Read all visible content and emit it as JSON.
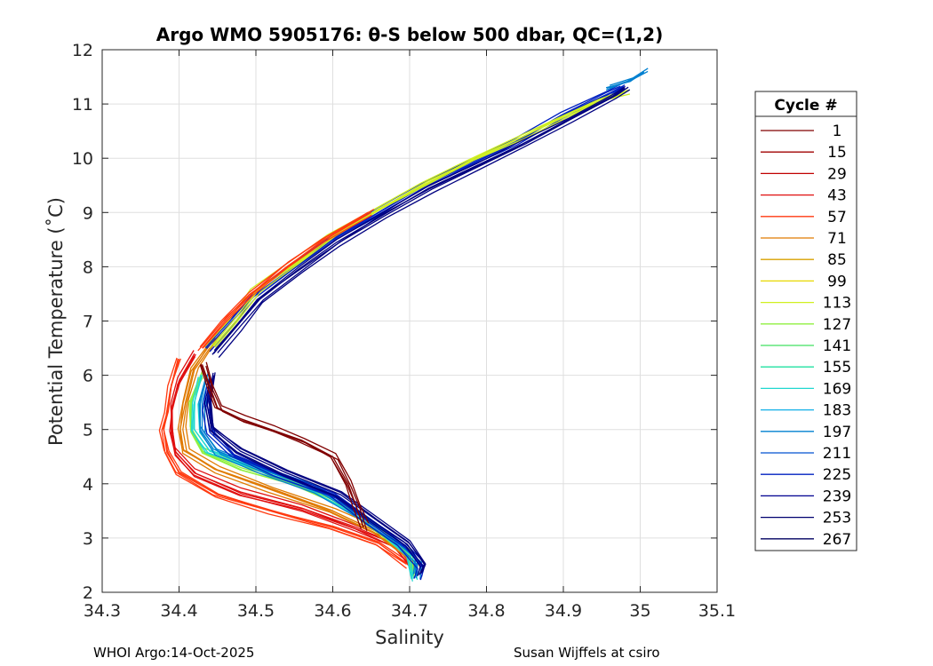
{
  "chart_data": {
    "type": "line",
    "title": "Argo WMO 5905176: θ-S below 500 dbar,  QC=(1,2)",
    "xlabel": "Salinity",
    "ylabel": "Potential Temperature (˚C)",
    "xlim": [
      34.3,
      35.1
    ],
    "ylim": [
      2,
      12
    ],
    "xticks": [
      "34.3",
      "34.4",
      "34.5",
      "34.6",
      "34.7",
      "34.8",
      "34.9",
      "35",
      "35.1"
    ],
    "yticks": [
      "2",
      "3",
      "4",
      "5",
      "6",
      "7",
      "8",
      "9",
      "10",
      "11",
      "12"
    ],
    "grid": true,
    "legend": {
      "title": "Cycle #",
      "placement": "outside-right",
      "entries": [
        {
          "label": "1",
          "color": "#800000"
        },
        {
          "label": "15",
          "color": "#a00000"
        },
        {
          "label": "29",
          "color": "#c00000"
        },
        {
          "label": "43",
          "color": "#e01010"
        },
        {
          "label": "57",
          "color": "#ff3a10"
        },
        {
          "label": "71",
          "color": "#e07a00"
        },
        {
          "label": "85",
          "color": "#d8a000"
        },
        {
          "label": "99",
          "color": "#e8d800"
        },
        {
          "label": "113",
          "color": "#d0f020"
        },
        {
          "label": "127",
          "color": "#90f040"
        },
        {
          "label": "141",
          "color": "#40e060"
        },
        {
          "label": "155",
          "color": "#20e0a0"
        },
        {
          "label": "169",
          "color": "#20d8d0"
        },
        {
          "label": "183",
          "color": "#10b0e8"
        },
        {
          "label": "197",
          "color": "#0080d0"
        },
        {
          "label": "211",
          "color": "#0050d0"
        },
        {
          "label": "225",
          "color": "#0020c0"
        },
        {
          "label": "239",
          "color": "#000090"
        },
        {
          "label": "253",
          "color": "#000070"
        },
        {
          "label": "267",
          "color": "#000060"
        }
      ]
    },
    "series": [
      {
        "color": "#ff3a10",
        "points": [
          [
            34.4,
            6.3
          ],
          [
            34.39,
            5.8
          ],
          [
            34.385,
            5.3
          ],
          [
            34.38,
            5.0
          ],
          [
            34.385,
            4.6
          ],
          [
            34.4,
            4.2
          ],
          [
            34.45,
            3.8
          ],
          [
            34.52,
            3.5
          ],
          [
            34.6,
            3.2
          ],
          [
            34.66,
            2.9
          ],
          [
            34.7,
            2.5
          ]
        ]
      },
      {
        "color": "#e01010",
        "points": [
          [
            34.42,
            6.4
          ],
          [
            34.4,
            5.9
          ],
          [
            34.39,
            5.4
          ],
          [
            34.39,
            5.0
          ],
          [
            34.395,
            4.6
          ],
          [
            34.42,
            4.2
          ],
          [
            34.48,
            3.85
          ],
          [
            34.56,
            3.55
          ],
          [
            34.63,
            3.2
          ],
          [
            34.68,
            2.9
          ],
          [
            34.705,
            2.45
          ]
        ]
      },
      {
        "color": "#e07a00",
        "points": [
          [
            34.45,
            6.7
          ],
          [
            34.42,
            6.1
          ],
          [
            34.41,
            5.5
          ],
          [
            34.405,
            5.0
          ],
          [
            34.41,
            4.6
          ],
          [
            34.45,
            4.25
          ],
          [
            34.52,
            3.9
          ],
          [
            34.6,
            3.5
          ],
          [
            34.66,
            3.1
          ],
          [
            34.7,
            2.7
          ],
          [
            34.71,
            2.4
          ]
        ]
      },
      {
        "color": "#90f040",
        "points": [
          [
            34.43,
            6.0
          ],
          [
            34.415,
            5.5
          ],
          [
            34.415,
            5.0
          ],
          [
            34.43,
            4.6
          ],
          [
            34.48,
            4.3
          ],
          [
            34.55,
            4.0
          ],
          [
            34.61,
            3.6
          ],
          [
            34.66,
            3.1
          ],
          [
            34.7,
            2.7
          ],
          [
            34.705,
            2.3
          ]
        ]
      },
      {
        "color": "#20d8d0",
        "points": [
          [
            34.43,
            6.0
          ],
          [
            34.42,
            5.5
          ],
          [
            34.42,
            5.0
          ],
          [
            34.44,
            4.6
          ],
          [
            34.5,
            4.3
          ],
          [
            34.57,
            3.95
          ],
          [
            34.63,
            3.5
          ],
          [
            34.67,
            3.1
          ],
          [
            34.7,
            2.7
          ],
          [
            34.705,
            2.25
          ]
        ]
      },
      {
        "color": "#0080d0",
        "points": [
          [
            34.44,
            6.0
          ],
          [
            34.43,
            5.5
          ],
          [
            34.43,
            5.0
          ],
          [
            34.45,
            4.6
          ],
          [
            34.51,
            4.25
          ],
          [
            34.58,
            3.9
          ],
          [
            34.64,
            3.4
          ],
          [
            34.68,
            3.0
          ],
          [
            34.71,
            2.6
          ],
          [
            34.71,
            2.3
          ]
        ]
      },
      {
        "color": "#0020c0",
        "points": [
          [
            34.44,
            5.9
          ],
          [
            34.435,
            5.4
          ],
          [
            34.44,
            4.95
          ],
          [
            34.47,
            4.55
          ],
          [
            34.53,
            4.2
          ],
          [
            34.6,
            3.8
          ],
          [
            34.65,
            3.3
          ],
          [
            34.69,
            2.9
          ],
          [
            34.715,
            2.5
          ],
          [
            34.71,
            2.3
          ]
        ]
      },
      {
        "color": "#000080",
        "points": [
          [
            34.445,
            6.0
          ],
          [
            34.44,
            5.5
          ],
          [
            34.445,
            5.0
          ],
          [
            34.48,
            4.6
          ],
          [
            34.54,
            4.2
          ],
          [
            34.61,
            3.8
          ],
          [
            34.66,
            3.3
          ],
          [
            34.7,
            2.9
          ],
          [
            34.72,
            2.5
          ],
          [
            34.715,
            2.35
          ]
        ]
      },
      {
        "color": "#800000",
        "points": [
          [
            34.43,
            6.2
          ],
          [
            34.44,
            5.8
          ],
          [
            34.45,
            5.4
          ],
          [
            34.48,
            5.2
          ],
          [
            34.52,
            5.0
          ],
          [
            34.56,
            4.8
          ],
          [
            34.6,
            4.5
          ],
          [
            34.62,
            4.0
          ],
          [
            34.63,
            3.6
          ],
          [
            34.64,
            3.2
          ]
        ]
      },
      {
        "color": "#0020c0",
        "points": [
          [
            34.44,
            6.5
          ],
          [
            34.47,
            7.0
          ],
          [
            34.5,
            7.5
          ],
          [
            34.55,
            8.0
          ],
          [
            34.6,
            8.5
          ],
          [
            34.66,
            9.0
          ],
          [
            34.72,
            9.5
          ],
          [
            34.78,
            9.9
          ],
          [
            34.84,
            10.3
          ],
          [
            34.9,
            10.8
          ],
          [
            34.96,
            11.2
          ],
          [
            34.98,
            11.35
          ]
        ]
      },
      {
        "color": "#d0f020",
        "points": [
          [
            34.44,
            6.5
          ],
          [
            34.47,
            7.0
          ],
          [
            34.5,
            7.55
          ],
          [
            34.55,
            8.05
          ],
          [
            34.6,
            8.55
          ],
          [
            34.66,
            9.05
          ],
          [
            34.72,
            9.52
          ],
          [
            34.78,
            9.95
          ],
          [
            34.84,
            10.35
          ],
          [
            34.9,
            10.75
          ],
          [
            34.95,
            11.05
          ],
          [
            34.98,
            11.2
          ]
        ]
      },
      {
        "color": "#ff3a10",
        "points": [
          [
            34.43,
            6.5
          ],
          [
            34.46,
            7.0
          ],
          [
            34.495,
            7.5
          ],
          [
            34.54,
            8.0
          ],
          [
            34.59,
            8.5
          ],
          [
            34.65,
            9.0
          ]
        ]
      },
      {
        "color": "#0080d0",
        "points": [
          [
            34.96,
            11.3
          ],
          [
            34.99,
            11.45
          ],
          [
            35.01,
            11.6
          ]
        ]
      },
      {
        "color": "#000080",
        "points": [
          [
            34.445,
            6.4
          ],
          [
            34.475,
            6.9
          ],
          [
            34.505,
            7.4
          ],
          [
            34.555,
            7.95
          ],
          [
            34.605,
            8.45
          ],
          [
            34.665,
            8.95
          ],
          [
            34.725,
            9.45
          ],
          [
            34.785,
            9.85
          ],
          [
            34.845,
            10.25
          ],
          [
            34.905,
            10.7
          ],
          [
            34.965,
            11.15
          ],
          [
            34.98,
            11.3
          ]
        ]
      }
    ]
  },
  "footer": {
    "left": "WHOI Argo:14-Oct-2025",
    "right": "Susan Wijffels at csiro"
  }
}
